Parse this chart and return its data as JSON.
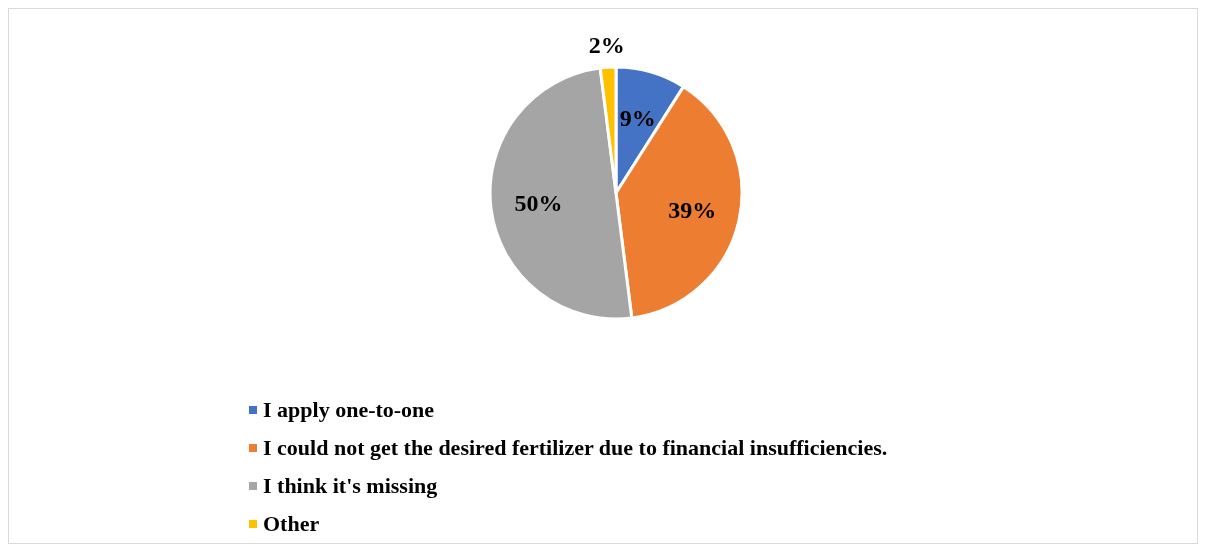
{
  "chart_data": {
    "type": "pie",
    "categories": [
      "I apply one-to-one",
      "I could not get the desired fertilizer due to financial insufficiencies.",
      "I think it's missing",
      "Other"
    ],
    "values": [
      9,
      39,
      50,
      2
    ],
    "colors": [
      "#4472c4",
      "#ed7d31",
      "#a5a5a5",
      "#ffc000"
    ],
    "value_labels": [
      "9%",
      "39%",
      "50%",
      "2%"
    ],
    "legend": "bottom"
  }
}
